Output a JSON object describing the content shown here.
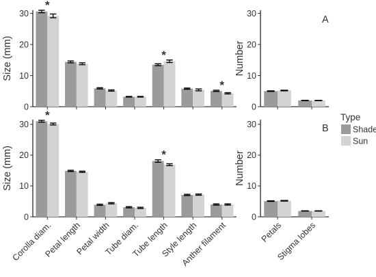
{
  "legend": {
    "title": "Type",
    "items": [
      {
        "label": "Shade",
        "color": "#9b9b9b"
      },
      {
        "label": "Sun",
        "color": "#d3d3d3"
      }
    ]
  },
  "chart_data": [
    {
      "panel": "top-left",
      "type": "bar",
      "ylabel": "Size (mm)",
      "ylim": [
        0,
        31
      ],
      "yticks": [
        0,
        10,
        20,
        30
      ],
      "categories": [
        "Corolla diam.",
        "Petal length",
        "Petal width",
        "Tube diam.",
        "Tube length",
        "Style length",
        "Anther filament"
      ],
      "series": [
        {
          "name": "Shade",
          "values": [
            30.6,
            14.4,
            5.9,
            3.2,
            13.5,
            5.8,
            5.1
          ],
          "errors": [
            0.4,
            0.3,
            0.2,
            0.1,
            0.3,
            0.2,
            0.2
          ]
        },
        {
          "name": "Sun",
          "values": [
            29.2,
            13.8,
            5.2,
            3.2,
            14.6,
            5.4,
            4.3
          ],
          "errors": [
            0.6,
            0.3,
            0.2,
            0.1,
            0.4,
            0.3,
            0.2
          ]
        }
      ],
      "significance": [
        "*",
        "",
        "",
        "",
        "*",
        "",
        "*"
      ],
      "show_x_tick_labels": false
    },
    {
      "panel": "top-right",
      "tag": "A",
      "type": "bar",
      "ylabel": "Number",
      "ylim": [
        0,
        31
      ],
      "yticks": [
        0,
        10,
        20,
        30
      ],
      "categories": [
        "Petals",
        "Stigma lobes"
      ],
      "series": [
        {
          "name": "Shade",
          "values": [
            5.0,
            2.0
          ],
          "errors": [
            0.1,
            0.05
          ]
        },
        {
          "name": "Sun",
          "values": [
            5.2,
            2.0
          ],
          "errors": [
            0.1,
            0.05
          ]
        }
      ],
      "significance": [
        "",
        ""
      ],
      "show_x_tick_labels": false
    },
    {
      "panel": "bottom-left",
      "type": "bar",
      "ylabel": "Size (mm)",
      "ylim": [
        0,
        31.5
      ],
      "yticks": [
        0,
        10,
        20,
        30
      ],
      "categories": [
        "Corolla diam.",
        "Petal length",
        "Petal width",
        "Tube diam.",
        "Tube length",
        "Style length",
        "Anther filament"
      ],
      "series": [
        {
          "name": "Shade",
          "values": [
            31.0,
            14.9,
            3.9,
            3.1,
            18.1,
            7.1,
            4.0
          ],
          "errors": [
            0.3,
            0.2,
            0.2,
            0.2,
            0.4,
            0.2,
            0.2
          ]
        },
        {
          "name": "Sun",
          "values": [
            30.1,
            14.6,
            4.4,
            2.9,
            16.9,
            7.2,
            4.0
          ],
          "errors": [
            0.3,
            0.2,
            0.2,
            0.2,
            0.3,
            0.2,
            0.2
          ]
        }
      ],
      "significance": [
        "*",
        "",
        "",
        "",
        "*",
        "",
        ""
      ],
      "show_x_tick_labels": true
    },
    {
      "panel": "bottom-right",
      "tag": "B",
      "type": "bar",
      "ylabel": "Number",
      "ylim": [
        0,
        31.5
      ],
      "yticks": [
        0,
        10,
        20,
        30
      ],
      "categories": [
        "Petals",
        "Stigma lobes"
      ],
      "series": [
        {
          "name": "Shade",
          "values": [
            5.1,
            1.9
          ],
          "errors": [
            0.1,
            0.05
          ]
        },
        {
          "name": "Sun",
          "values": [
            5.2,
            1.9
          ],
          "errors": [
            0.1,
            0.05
          ]
        }
      ],
      "significance": [
        "",
        ""
      ],
      "show_x_tick_labels": true
    }
  ]
}
